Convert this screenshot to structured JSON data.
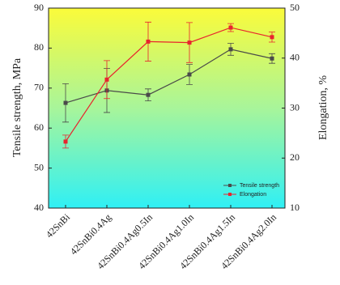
{
  "chart_data": {
    "type": "line",
    "categories": [
      "42SnBi",
      "42SnBi0.4Ag",
      "42SnBi0.4Ag0.5In",
      "42SnBi0.4Ag1.0In",
      "42SnBi0.4Ag1.5In",
      "42SnBi0.4Ag2.0In"
    ],
    "y_label": "Tensile strength, MPa",
    "y2_label": "Elongation, %",
    "ylim": [
      40,
      90
    ],
    "yticks": [
      40,
      50,
      60,
      70,
      80,
      90
    ],
    "y2lim": [
      10,
      50
    ],
    "y2ticks": [
      10,
      20,
      30,
      40,
      50
    ],
    "legend": "lower right",
    "series": [
      {
        "name": "Tensile strength",
        "color": "#4a4a4a",
        "values": [
          66.3,
          69.4,
          68.3,
          73.4,
          79.7,
          77.4
        ],
        "errors": [
          4.8,
          5.5,
          1.5,
          2.5,
          1.5,
          1.2
        ]
      },
      {
        "name": "Elongation",
        "color": "#e8242e",
        "axis": "y2",
        "values": [
          23.3,
          35.7,
          43.3,
          43.1,
          46.1,
          44.2
        ],
        "errors": [
          1.3,
          3.8,
          3.9,
          4.0,
          0.8,
          1.0
        ]
      }
    ]
  }
}
